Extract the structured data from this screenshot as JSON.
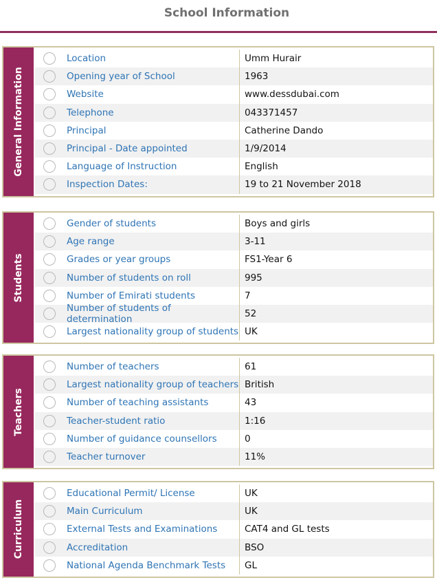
{
  "header": {
    "title": "School Information"
  },
  "sections": [
    {
      "name": "General Information",
      "rows": [
        [
          "Location",
          "Umm Hurair"
        ],
        [
          "Opening year of School",
          "1963"
        ],
        [
          "Website",
          "www.dessdubai.com"
        ],
        [
          "Telephone",
          "043371457"
        ],
        [
          "Principal",
          "Catherine Dando"
        ],
        [
          "Principal - Date appointed",
          "1/9/2014"
        ],
        [
          "Language of Instruction",
          "English"
        ],
        [
          "Inspection Dates:",
          "19 to 21 November 2018"
        ]
      ]
    },
    {
      "name": "Students",
      "rows": [
        [
          "Gender of students",
          "Boys and girls"
        ],
        [
          "Age range",
          "3-11"
        ],
        [
          "Grades or year groups",
          "FS1-Year 6"
        ],
        [
          "Number of students on roll",
          "995"
        ],
        [
          "Number of Emirati students",
          "7"
        ],
        [
          "Number of students of determination",
          "52"
        ],
        [
          "Largest nationality group of students",
          "UK"
        ]
      ]
    },
    {
      "name": "Teachers",
      "rows": [
        [
          "Number of teachers",
          "61"
        ],
        [
          "Largest nationality group of teachers",
          "British"
        ],
        [
          "Number of teaching assistants",
          "43"
        ],
        [
          "Teacher-student ratio",
          "1:16"
        ],
        [
          "Number of guidance counsellors",
          "0"
        ],
        [
          "Teacher turnover",
          "11%"
        ]
      ]
    },
    {
      "name": "Curriculum",
      "rows": [
        [
          "Educational Permit/ License",
          "UK"
        ],
        [
          "Main Curriculum",
          "UK"
        ],
        [
          "External Tests and Examinations",
          "CAT4 and GL tests"
        ],
        [
          "Accreditation",
          "BSO"
        ],
        [
          "National Agenda Benchmark Tests",
          "GL"
        ]
      ]
    }
  ]
}
